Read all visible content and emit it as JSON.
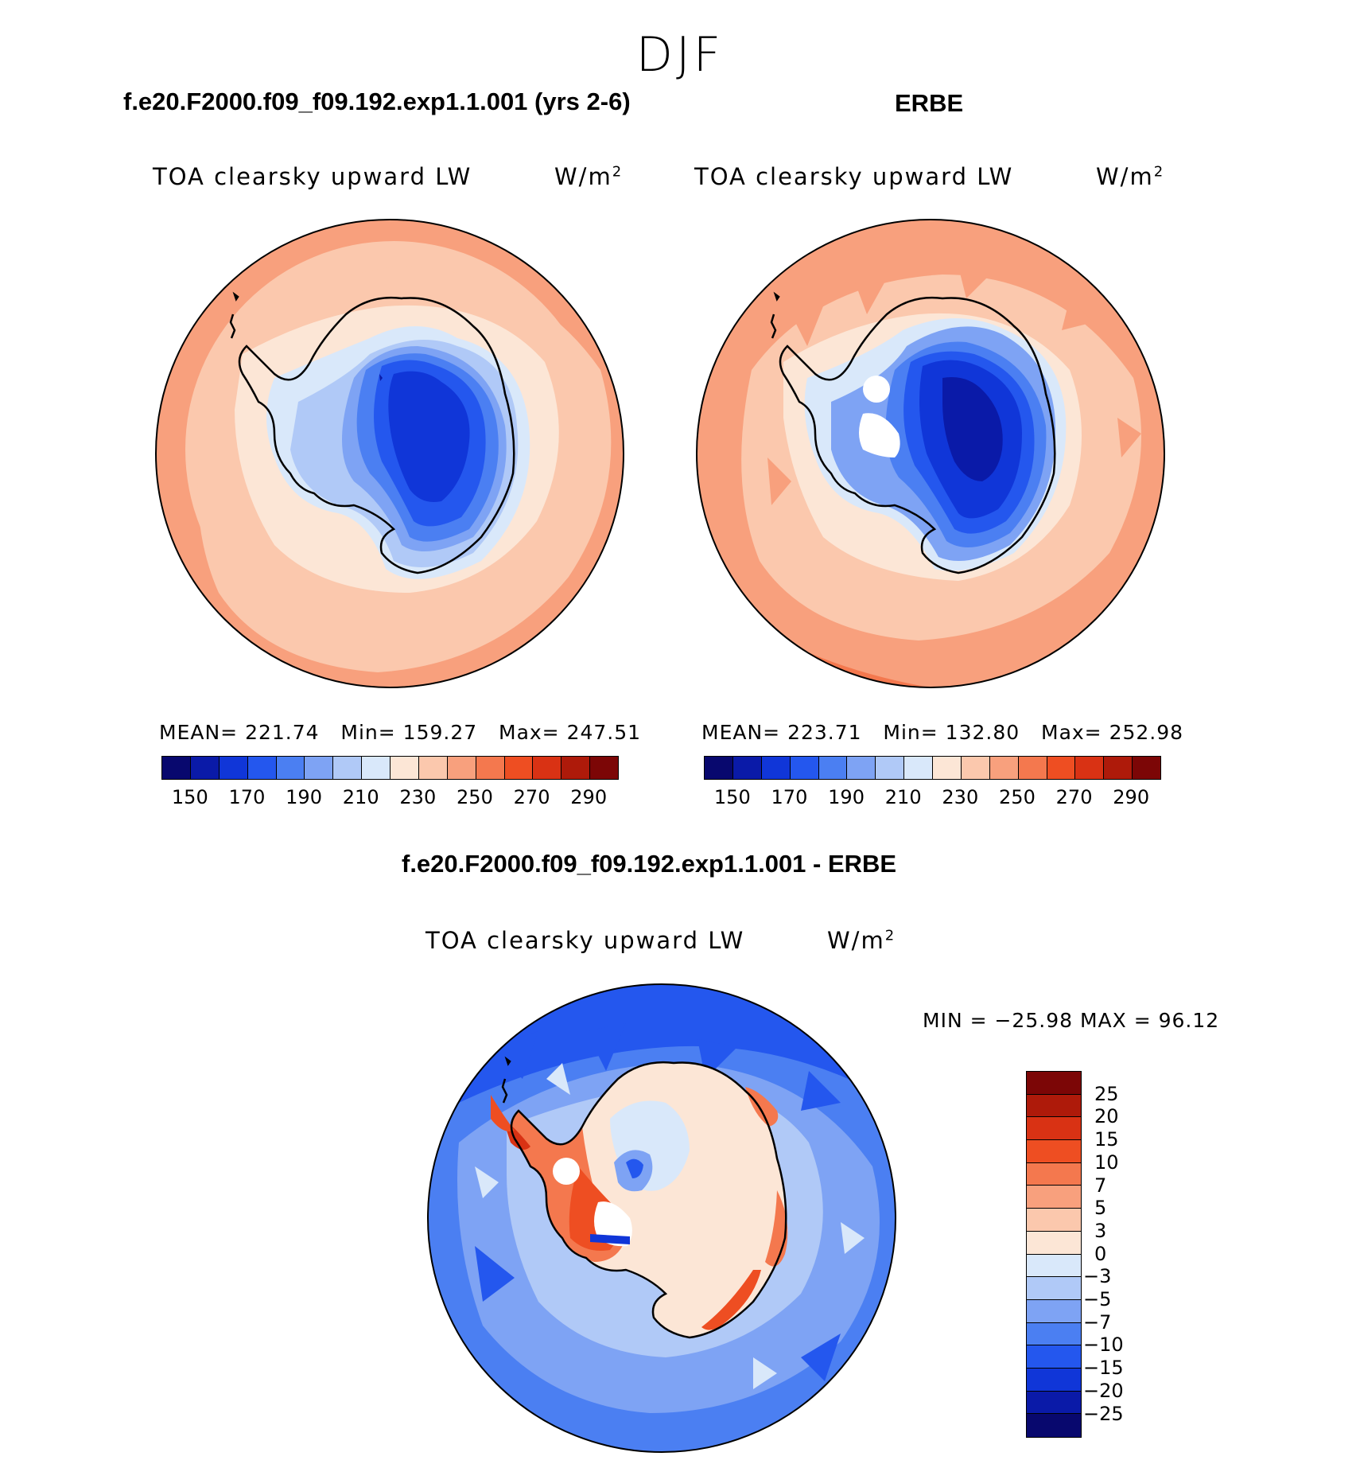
{
  "figure": {
    "season": "DJF"
  },
  "panels": {
    "model": {
      "title": "f.e20.F2000.f09_f09.192.exp1.1.001 (yrs 2-6)",
      "field": "TOA clearsky upward LW",
      "units": "W/m",
      "units_sup": "2",
      "stats": {
        "mean_label": "MEAN=",
        "mean": "221.74",
        "min_label": "Min=",
        "min": "159.27",
        "max_label": "Max=",
        "max": "247.51"
      },
      "colorbar_ticks": [
        "150",
        "170",
        "190",
        "210",
        "230",
        "250",
        "270",
        "290"
      ]
    },
    "obs": {
      "title": "ERBE",
      "field": "TOA clearsky upward LW",
      "units": "W/m",
      "units_sup": "2",
      "stats": {
        "mean_label": "MEAN=",
        "mean": "223.71",
        "min_label": "Min=",
        "min": "132.80",
        "max_label": "Max=",
        "max": "252.98"
      },
      "colorbar_ticks": [
        "150",
        "170",
        "190",
        "210",
        "230",
        "250",
        "270",
        "290"
      ]
    },
    "diff": {
      "title": "f.e20.F2000.f09_f09.192.exp1.1.001 - ERBE",
      "field": "TOA clearsky upward LW",
      "units": "W/m",
      "units_sup": "2",
      "minmax": "MIN = −25.98  MAX =   96.12",
      "colorbar_ticks": [
        "25",
        "20",
        "15",
        "10",
        "7",
        "5",
        "3",
        "0",
        "−3",
        "−5",
        "−7",
        "−10",
        "−15",
        "−20",
        "−25"
      ]
    }
  },
  "colors": {
    "abs_scale": [
      "#08086e",
      "#0a1aa8",
      "#1036d8",
      "#2457ee",
      "#4b7ff2",
      "#7ea3f4",
      "#b0c9f7",
      "#d9e8fa",
      "#fce6d6",
      "#fbc8ad",
      "#f8a07d",
      "#f4784e",
      "#ee4e22",
      "#d93214",
      "#ae1a0a",
      "#7c0606"
    ],
    "diff_scale": [
      "#7c0606",
      "#ae1a0a",
      "#d93214",
      "#ee4e22",
      "#f4784e",
      "#f8a07d",
      "#fbc8ad",
      "#fce6d6",
      "#d9e8fa",
      "#b0c9f7",
      "#7ea3f4",
      "#4b7ff2",
      "#2457ee",
      "#1036d8",
      "#0a1aa8",
      "#08086e"
    ]
  }
}
